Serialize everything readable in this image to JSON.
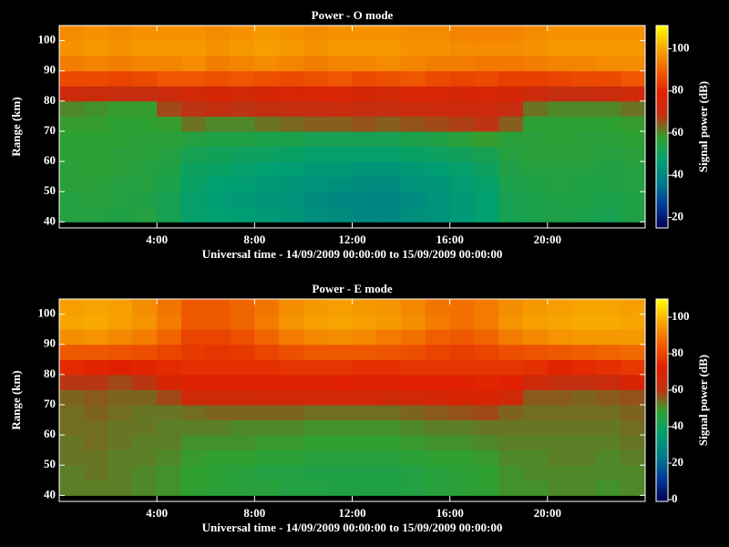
{
  "chart_data": [
    {
      "type": "heatmap",
      "title": "Power - O mode",
      "xlabel": "Universal time - 14/09/2009 00:00:00 to 15/09/2009 00:00:00",
      "ylabel": "Range (km)",
      "zlabel": "Signal power (dB)",
      "x_bins": [
        0,
        1,
        2,
        3,
        4,
        5,
        6,
        7,
        8,
        9,
        10,
        11,
        12,
        13,
        14,
        15,
        16,
        17,
        18,
        19,
        20,
        21,
        22,
        23,
        24
      ],
      "y_bins": [
        40,
        45,
        50,
        55,
        60,
        65,
        70,
        75,
        80,
        85,
        90,
        95,
        100,
        105
      ],
      "z": [
        [
          55,
          55,
          54,
          55,
          52,
          48,
          47,
          46,
          45,
          44,
          42,
          41,
          40,
          40,
          42,
          43,
          45,
          47,
          52,
          53,
          54,
          53,
          52,
          54
        ],
        [
          55,
          56,
          55,
          54,
          52,
          48,
          46,
          45,
          44,
          43,
          41,
          40,
          40,
          39,
          41,
          43,
          45,
          47,
          52,
          53,
          54,
          54,
          53,
          54
        ],
        [
          56,
          56,
          55,
          55,
          53,
          49,
          47,
          46,
          45,
          44,
          43,
          42,
          41,
          41,
          43,
          44,
          46,
          48,
          53,
          54,
          55,
          54,
          54,
          55
        ],
        [
          56,
          57,
          56,
          55,
          54,
          50,
          49,
          48,
          47,
          46,
          45,
          45,
          44,
          44,
          45,
          46,
          48,
          50,
          54,
          55,
          55,
          55,
          54,
          55
        ],
        [
          57,
          57,
          56,
          56,
          55,
          52,
          51,
          50,
          50,
          49,
          48,
          48,
          48,
          48,
          49,
          50,
          51,
          52,
          55,
          56,
          56,
          56,
          55,
          56
        ],
        [
          57,
          57,
          57,
          56,
          56,
          55,
          54,
          54,
          53,
          53,
          52,
          52,
          52,
          52,
          53,
          54,
          56,
          58,
          56,
          56,
          57,
          56,
          56,
          57
        ],
        [
          58,
          58,
          57,
          57,
          58,
          62,
          60,
          60,
          62,
          63,
          64,
          64,
          65,
          64,
          65,
          66,
          67,
          68,
          64,
          57,
          57,
          57,
          57,
          58
        ],
        [
          60,
          59,
          58,
          58,
          66,
          68,
          69,
          68,
          69,
          70,
          70,
          71,
          70,
          70,
          71,
          72,
          72,
          72,
          70,
          62,
          60,
          60,
          60,
          62
        ],
        [
          72,
          71,
          70,
          70,
          72,
          74,
          75,
          74,
          75,
          76,
          76,
          76,
          75,
          74,
          76,
          76,
          75,
          76,
          75,
          72,
          70,
          70,
          71,
          73
        ],
        [
          86,
          86,
          85,
          86,
          88,
          88,
          87,
          88,
          87,
          86,
          87,
          88,
          86,
          87,
          88,
          86,
          85,
          86,
          84,
          84,
          85,
          86,
          86,
          88
        ],
        [
          94,
          95,
          94,
          95,
          95,
          96,
          94,
          95,
          96,
          95,
          94,
          95,
          95,
          96,
          95,
          94,
          94,
          93,
          93,
          94,
          95,
          95,
          96,
          96
        ],
        [
          97,
          98,
          97,
          98,
          98,
          98,
          97,
          98,
          99,
          98,
          97,
          98,
          98,
          98,
          97,
          97,
          96,
          96,
          96,
          97,
          98,
          98,
          98,
          98
        ],
        [
          96,
          97,
          96,
          97,
          97,
          97,
          96,
          97,
          98,
          97,
          96,
          97,
          97,
          97,
          96,
          96,
          95,
          95,
          95,
          96,
          97,
          97,
          97,
          97
        ]
      ],
      "xlim": [
        0,
        24
      ],
      "xticks": [
        {
          "value": 4,
          "label": "4:00"
        },
        {
          "value": 8,
          "label": "8:00"
        },
        {
          "value": 12,
          "label": "12:00"
        },
        {
          "value": 16,
          "label": "16:00"
        },
        {
          "value": 20,
          "label": "20:00"
        }
      ],
      "ylim": [
        38,
        105
      ],
      "yticks": [
        40,
        50,
        60,
        70,
        80,
        90,
        100
      ],
      "zlim": [
        15,
        111
      ],
      "zticks": [
        20,
        40,
        60,
        80,
        100
      ],
      "colormap": [
        "#000050",
        "#003a9a",
        "#007a8a",
        "#00a070",
        "#30a030",
        "#c03010",
        "#e02000",
        "#f06000",
        "#f8a800",
        "#ffff00"
      ]
    },
    {
      "type": "heatmap",
      "title": "Power - E mode",
      "xlabel": "Universal time - 14/09/2009 00:00:00 to 15/09/2009 00:00:00",
      "ylabel": "Range (km)",
      "zlabel": "Signal power (dB)",
      "x_bins": [
        0,
        1,
        2,
        3,
        4,
        5,
        6,
        7,
        8,
        9,
        10,
        11,
        12,
        13,
        14,
        15,
        16,
        17,
        18,
        19,
        20,
        21,
        22,
        23,
        24
      ],
      "y_bins": [
        40,
        45,
        50,
        55,
        60,
        65,
        70,
        75,
        80,
        85,
        90,
        95,
        100,
        105
      ],
      "z": [
        [
          52,
          52,
          52,
          51,
          50,
          48,
          47,
          46,
          46,
          45,
          45,
          44,
          44,
          44,
          45,
          46,
          47,
          48,
          50,
          50,
          51,
          51,
          50,
          51
        ],
        [
          52,
          53,
          52,
          51,
          50,
          48,
          47,
          46,
          45,
          45,
          44,
          44,
          44,
          44,
          45,
          46,
          47,
          48,
          50,
          51,
          51,
          51,
          51,
          51
        ],
        [
          53,
          53,
          52,
          52,
          51,
          49,
          48,
          48,
          47,
          47,
          46,
          46,
          46,
          46,
          47,
          48,
          48,
          49,
          51,
          51,
          52,
          52,
          51,
          52
        ],
        [
          53,
          54,
          53,
          52,
          52,
          50,
          50,
          50,
          49,
          49,
          48,
          48,
          48,
          48,
          49,
          50,
          50,
          51,
          52,
          52,
          52,
          52,
          52,
          53
        ],
        [
          54,
          54,
          53,
          53,
          52,
          52,
          52,
          51,
          51,
          51,
          50,
          50,
          50,
          50,
          51,
          52,
          52,
          53,
          53,
          53,
          53,
          53,
          53,
          54
        ],
        [
          54,
          55,
          54,
          53,
          53,
          54,
          55,
          55,
          55,
          55,
          54,
          54,
          54,
          54,
          55,
          56,
          57,
          58,
          55,
          54,
          54,
          54,
          54,
          55
        ],
        [
          55,
          56,
          55,
          55,
          58,
          66,
          66,
          66,
          67,
          67,
          67,
          67,
          67,
          66,
          67,
          68,
          69,
          70,
          66,
          56,
          56,
          55,
          56,
          57
        ],
        [
          60,
          60,
          58,
          60,
          70,
          72,
          72,
          72,
          72,
          72,
          72,
          73,
          72,
          72,
          73,
          73,
          73,
          74,
          73,
          66,
          62,
          62,
          64,
          70
        ],
        [
          75,
          74,
          73,
          74,
          75,
          76,
          76,
          76,
          76,
          77,
          77,
          77,
          76,
          76,
          77,
          77,
          77,
          77,
          77,
          76,
          74,
          75,
          76,
          78
        ],
        [
          84,
          84,
          83,
          82,
          80,
          78,
          77,
          78,
          80,
          82,
          84,
          84,
          84,
          83,
          82,
          80,
          79,
          80,
          82,
          83,
          84,
          85,
          86,
          87
        ],
        [
          93,
          94,
          92,
          90,
          86,
          80,
          80,
          82,
          86,
          90,
          92,
          93,
          92,
          90,
          88,
          85,
          84,
          86,
          90,
          92,
          94,
          95,
          95,
          95
        ],
        [
          97,
          98,
          96,
          94,
          90,
          84,
          84,
          86,
          90,
          94,
          96,
          97,
          96,
          95,
          93,
          90,
          88,
          90,
          94,
          96,
          97,
          98,
          98,
          97
        ],
        [
          96,
          97,
          96,
          93,
          89,
          84,
          84,
          86,
          89,
          93,
          95,
          96,
          95,
          94,
          92,
          89,
          88,
          90,
          93,
          95,
          96,
          97,
          97,
          96
        ]
      ],
      "xlim": [
        0,
        24
      ],
      "xticks": [
        {
          "value": 4,
          "label": "4:00"
        },
        {
          "value": 8,
          "label": "8:00"
        },
        {
          "value": 12,
          "label": "12:00"
        },
        {
          "value": 16,
          "label": "16:00"
        },
        {
          "value": 20,
          "label": "20:00"
        }
      ],
      "ylim": [
        38,
        105
      ],
      "yticks": [
        40,
        50,
        60,
        70,
        80,
        90,
        100
      ],
      "zlim": [
        -1,
        110
      ],
      "zticks": [
        0,
        20,
        40,
        60,
        80,
        100
      ],
      "colormap": [
        "#000050",
        "#003a9a",
        "#007a8a",
        "#00a070",
        "#30a030",
        "#c03010",
        "#e02000",
        "#f06000",
        "#f8a800",
        "#ffff00"
      ]
    }
  ]
}
